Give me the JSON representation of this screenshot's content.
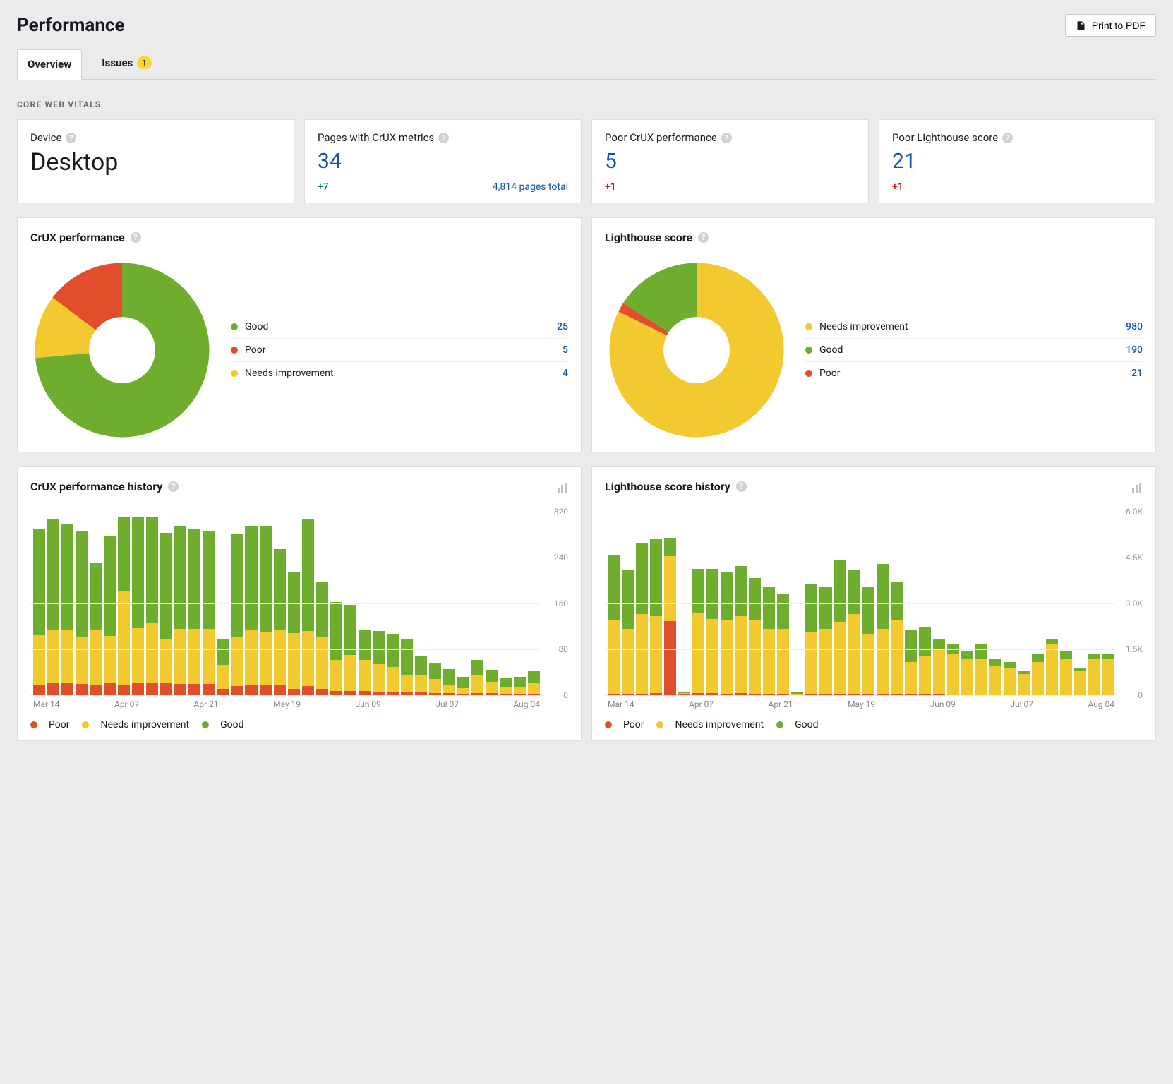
{
  "header": {
    "title": "Performance",
    "print_button": "Print to PDF"
  },
  "tabs": {
    "overview": "Overview",
    "issues": "Issues",
    "issues_badge": "1"
  },
  "section_label": "CORE WEB VITALS",
  "colors": {
    "good": "#6ead2d",
    "poor": "#e24e2b",
    "needs": "#f2c92e",
    "link": "#1353b3",
    "delta_pos": "#007f3f",
    "delta_neg": "#cf1511",
    "grid": "#eeeeee",
    "tick_text": "#9a9a9a",
    "background": "#ebebeb",
    "card_bg": "#ffffff",
    "border": "#dddddd"
  },
  "stat_cards": {
    "device": {
      "label": "Device",
      "value": "Desktop"
    },
    "pages_crux": {
      "label": "Pages with CrUX metrics",
      "value": "34",
      "delta": "+7",
      "foot": "4,814 pages total"
    },
    "poor_crux": {
      "label": "Poor CrUX performance",
      "value": "5",
      "delta": "+1"
    },
    "poor_lh": {
      "label": "Poor Lighthouse score",
      "value": "21",
      "delta": "+1"
    }
  },
  "donut_crux": {
    "title": "CrUX performance",
    "inner_radius_pct": 38,
    "items": [
      {
        "label": "Good",
        "value": 25,
        "color": "#6ead2d"
      },
      {
        "label": "Poor",
        "value": 5,
        "color": "#e24e2b"
      },
      {
        "label": "Needs improvement",
        "value": 4,
        "color": "#f2c92e"
      }
    ],
    "slice_order": [
      "good",
      "needs",
      "poor"
    ],
    "start_angle_deg": 0
  },
  "donut_lh": {
    "title": "Lighthouse score",
    "inner_radius_pct": 38,
    "items": [
      {
        "label": "Needs improvement",
        "value": 980,
        "color": "#f2c92e"
      },
      {
        "label": "Good",
        "value": 190,
        "color": "#6ead2d"
      },
      {
        "label": "Poor",
        "value": 21,
        "color": "#e24e2b"
      }
    ],
    "slice_order": [
      "needs",
      "poor",
      "good"
    ],
    "start_angle_deg": 0
  },
  "hist_crux": {
    "title": "CrUX performance history",
    "ylim": [
      0,
      320
    ],
    "ytick_step": 80,
    "yticks": [
      "0",
      "80",
      "160",
      "240",
      "320"
    ],
    "xticks": [
      "Mar 14",
      "Apr 07",
      "Apr 21",
      "May 19",
      "Jun 09",
      "Jul 07",
      "Aug 04"
    ],
    "legend": [
      {
        "label": "Poor",
        "color": "#e24e2b"
      },
      {
        "label": "Needs improvement",
        "color": "#f2c92e"
      },
      {
        "label": "Good",
        "color": "#6ead2d"
      }
    ],
    "bars": [
      {
        "good": 190,
        "needs": 90,
        "poor": 18
      },
      {
        "good": 200,
        "needs": 95,
        "poor": 22
      },
      {
        "good": 190,
        "needs": 95,
        "poor": 22
      },
      {
        "good": 190,
        "needs": 85,
        "poor": 20
      },
      {
        "good": 120,
        "needs": 100,
        "poor": 18
      },
      {
        "good": 180,
        "needs": 85,
        "poor": 22
      },
      {
        "good": 135,
        "needs": 170,
        "poor": 18
      },
      {
        "good": 200,
        "needs": 100,
        "poor": 22
      },
      {
        "good": 195,
        "needs": 110,
        "poor": 22
      },
      {
        "good": 190,
        "needs": 80,
        "poor": 22
      },
      {
        "good": 185,
        "needs": 100,
        "poor": 20
      },
      {
        "good": 180,
        "needs": 100,
        "poor": 20
      },
      {
        "good": 175,
        "needs": 100,
        "poor": 20
      },
      {
        "good": 45,
        "needs": 45,
        "poor": 10
      },
      {
        "good": 185,
        "needs": 90,
        "poor": 16
      },
      {
        "good": 185,
        "needs": 100,
        "poor": 18
      },
      {
        "good": 190,
        "needs": 95,
        "poor": 18
      },
      {
        "good": 145,
        "needs": 100,
        "poor": 18
      },
      {
        "good": 110,
        "needs": 100,
        "poor": 12
      },
      {
        "good": 200,
        "needs": 100,
        "poor": 16
      },
      {
        "good": 100,
        "needs": 95,
        "poor": 10
      },
      {
        "good": 105,
        "needs": 55,
        "poor": 8
      },
      {
        "good": 90,
        "needs": 65,
        "poor": 8
      },
      {
        "good": 55,
        "needs": 55,
        "poor": 8
      },
      {
        "good": 60,
        "needs": 50,
        "poor": 6
      },
      {
        "good": 60,
        "needs": 45,
        "poor": 6
      },
      {
        "good": 65,
        "needs": 30,
        "poor": 5
      },
      {
        "good": 35,
        "needs": 30,
        "poor": 5
      },
      {
        "good": 30,
        "needs": 25,
        "poor": 4
      },
      {
        "good": 28,
        "needs": 15,
        "poor": 4
      },
      {
        "good": 20,
        "needs": 10,
        "poor": 3
      },
      {
        "good": 28,
        "needs": 32,
        "poor": 4
      },
      {
        "good": 22,
        "needs": 20,
        "poor": 4
      },
      {
        "good": 15,
        "needs": 12,
        "poor": 3
      },
      {
        "good": 18,
        "needs": 12,
        "poor": 3
      },
      {
        "good": 22,
        "needs": 18,
        "poor": 3
      }
    ]
  },
  "hist_lh": {
    "title": "Lighthouse score history",
    "ylim": [
      0,
      6000
    ],
    "ytick_step": 1500,
    "yticks": [
      "0",
      "1.5K",
      "3.0K",
      "4.5K",
      "6.0K"
    ],
    "xticks": [
      "Mar 14",
      "Apr 07",
      "Apr 21",
      "May 19",
      "Jun 09",
      "Jul 07",
      "Aug 04"
    ],
    "legend": [
      {
        "label": "Poor",
        "color": "#e24e2b"
      },
      {
        "label": "Needs improvement",
        "color": "#f2c92e"
      },
      {
        "label": "Good",
        "color": "#6ead2d"
      }
    ],
    "bars": [
      {
        "good": 2200,
        "needs": 2500,
        "poor": 50
      },
      {
        "good": 2000,
        "needs": 2200,
        "poor": 50
      },
      {
        "good": 2400,
        "needs": 2700,
        "poor": 50
      },
      {
        "good": 2600,
        "needs": 2600,
        "poor": 60
      },
      {
        "good": 600,
        "needs": 2200,
        "poor": 2500
      },
      {
        "good": 50,
        "needs": 50,
        "poor": 20
      },
      {
        "good": 1500,
        "needs": 2700,
        "poor": 60
      },
      {
        "good": 1700,
        "needs": 2500,
        "poor": 60
      },
      {
        "good": 1600,
        "needs": 2500,
        "poor": 50
      },
      {
        "good": 1700,
        "needs": 2600,
        "poor": 60
      },
      {
        "good": 1400,
        "needs": 2500,
        "poor": 50
      },
      {
        "good": 1400,
        "needs": 2200,
        "poor": 50
      },
      {
        "good": 1200,
        "needs": 2200,
        "poor": 40
      },
      {
        "good": 40,
        "needs": 40,
        "poor": 10
      },
      {
        "good": 1600,
        "needs": 2100,
        "poor": 40
      },
      {
        "good": 1400,
        "needs": 2200,
        "poor": 40
      },
      {
        "good": 2100,
        "needs": 2400,
        "poor": 50
      },
      {
        "good": 1500,
        "needs": 2700,
        "poor": 40
      },
      {
        "good": 1600,
        "needs": 2000,
        "poor": 40
      },
      {
        "good": 2200,
        "needs": 2200,
        "poor": 40
      },
      {
        "good": 1300,
        "needs": 2500,
        "poor": 30
      },
      {
        "good": 1100,
        "needs": 1100,
        "poor": 20
      },
      {
        "good": 1000,
        "needs": 1300,
        "poor": 20
      },
      {
        "good": 400,
        "needs": 1500,
        "poor": 15
      },
      {
        "good": 300,
        "needs": 1400,
        "poor": 10
      },
      {
        "good": 300,
        "needs": 1200,
        "poor": 10
      },
      {
        "good": 500,
        "needs": 1200,
        "poor": 10
      },
      {
        "good": 200,
        "needs": 1000,
        "poor": 10
      },
      {
        "good": 200,
        "needs": 900,
        "poor": 10
      },
      {
        "good": 100,
        "needs": 700,
        "poor": 10
      },
      {
        "good": 300,
        "needs": 1100,
        "poor": 10
      },
      {
        "good": 200,
        "needs": 1700,
        "poor": 10
      },
      {
        "good": 300,
        "needs": 1200,
        "poor": 10
      },
      {
        "good": 100,
        "needs": 800,
        "poor": 10
      },
      {
        "good": 200,
        "needs": 1200,
        "poor": 10
      },
      {
        "good": 200,
        "needs": 1200,
        "poor": 10
      }
    ]
  }
}
